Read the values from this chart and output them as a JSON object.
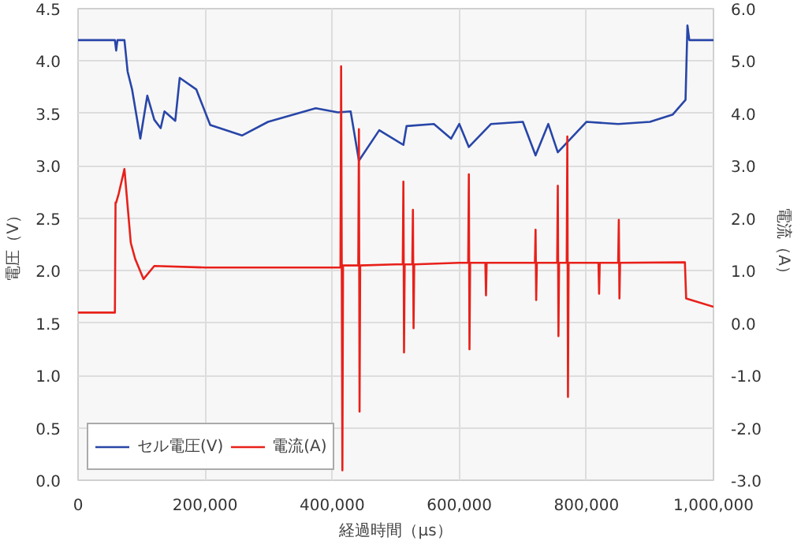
{
  "chart_data": {
    "type": "line",
    "xlabel": "経過時間（μs）",
    "ylabel": "電圧（V）",
    "y2label": "電流（A）",
    "xlim": [
      0,
      1000000
    ],
    "ylim": [
      0,
      4.5
    ],
    "y2lim": [
      -3,
      6
    ],
    "xticks": [
      {
        "value": 0,
        "label": "0"
      },
      {
        "value": 200000,
        "label": "200,000"
      },
      {
        "value": 400000,
        "label": "400,000"
      },
      {
        "value": 600000,
        "label": "600,000"
      },
      {
        "value": 800000,
        "label": "800,000"
      },
      {
        "value": 1000000,
        "label": "1,000,000"
      }
    ],
    "yticks": [
      {
        "value": 0,
        "label": "0.0"
      },
      {
        "value": 0.5,
        "label": "0.5"
      },
      {
        "value": 1,
        "label": "1.0"
      },
      {
        "value": 1.5,
        "label": "1.5"
      },
      {
        "value": 2,
        "label": "2.0"
      },
      {
        "value": 2.5,
        "label": "2.5"
      },
      {
        "value": 3,
        "label": "3.0"
      },
      {
        "value": 3.5,
        "label": "3.5"
      },
      {
        "value": 4,
        "label": "4.0"
      },
      {
        "value": 4.5,
        "label": "4.5"
      }
    ],
    "y2ticks": [
      {
        "value": -3,
        "label": "-3.0"
      },
      {
        "value": -2,
        "label": "-2.0"
      },
      {
        "value": -1,
        "label": "-1.0"
      },
      {
        "value": 0,
        "label": "0.0"
      },
      {
        "value": 1,
        "label": "1.0"
      },
      {
        "value": 2,
        "label": "2.0"
      },
      {
        "value": 3,
        "label": "3.0"
      },
      {
        "value": 4,
        "label": "4.0"
      },
      {
        "value": 5,
        "label": "5.0"
      },
      {
        "value": 6,
        "label": "6.0"
      }
    ],
    "grid": true,
    "legend": "bottom left",
    "marker": "none",
    "line_style": "solid",
    "series": [
      {
        "name": "セル電圧(V)",
        "color": "#2846a8",
        "x": [
          0,
          58000,
          60000,
          62000,
          73000,
          78000,
          85000,
          98000,
          109000,
          120000,
          130000,
          136000,
          153000,
          160000,
          186000,
          208000,
          258000,
          299000,
          374000,
          409000,
          429000,
          442000,
          474000,
          512000,
          517000,
          560000,
          587000,
          600000,
          615000,
          650000,
          700000,
          720000,
          740000,
          755000,
          800000,
          850000,
          900000,
          936000,
          956000,
          959000,
          962000,
          1000000
        ],
        "values": [
          4.2,
          4.2,
          4.1,
          4.2,
          4.2,
          3.9,
          3.73,
          3.26,
          3.67,
          3.44,
          3.36,
          3.52,
          3.43,
          3.84,
          3.73,
          3.39,
          3.29,
          3.42,
          3.55,
          3.51,
          3.52,
          3.05,
          3.34,
          3.2,
          3.38,
          3.4,
          3.26,
          3.4,
          3.18,
          3.4,
          3.42,
          3.1,
          3.4,
          3.13,
          3.42,
          3.4,
          3.42,
          3.49,
          3.63,
          4.34,
          4.2,
          4.2
        ]
      },
      {
        "name": "電流(A)",
        "color": "#e8201a",
        "axis": "y2",
        "x": [
          0,
          58000,
          59000,
          60000,
          64000,
          73000,
          83000,
          90000,
          103000,
          120000,
          200000,
          300000,
          413000,
          414000,
          416000,
          417000,
          419000,
          441000,
          442000,
          443000,
          444000,
          500000,
          511000,
          512000,
          513000,
          514000,
          526000,
          527000,
          528000,
          529000,
          600000,
          614000,
          615000,
          616000,
          617000,
          641000,
          642000,
          643000,
          719000,
          720000,
          721000,
          722000,
          754000,
          755000,
          756000,
          757000,
          769000,
          770000,
          771000,
          772000,
          819000,
          820000,
          821000,
          850000,
          851000,
          852000,
          853000,
          955000,
          957000,
          1000000
        ],
        "values": [
          0.2,
          0.2,
          2.3,
          2.3,
          2.47,
          2.94,
          1.53,
          1.22,
          0.84,
          1.09,
          1.06,
          1.06,
          1.06,
          4.9,
          -2.81,
          1.1,
          1.1,
          1.1,
          3.7,
          -1.69,
          1.1,
          1.12,
          1.12,
          2.7,
          -0.56,
          1.12,
          1.12,
          2.16,
          -0.1,
          1.12,
          1.15,
          1.15,
          2.84,
          -0.5,
          1.15,
          1.15,
          0.53,
          1.15,
          1.15,
          1.78,
          0.44,
          1.15,
          1.15,
          2.62,
          -0.25,
          1.15,
          1.15,
          3.56,
          -1.41,
          1.15,
          1.15,
          0.56,
          1.15,
          1.15,
          1.97,
          0.47,
          1.15,
          1.16,
          0.47,
          0.31
        ]
      }
    ]
  }
}
